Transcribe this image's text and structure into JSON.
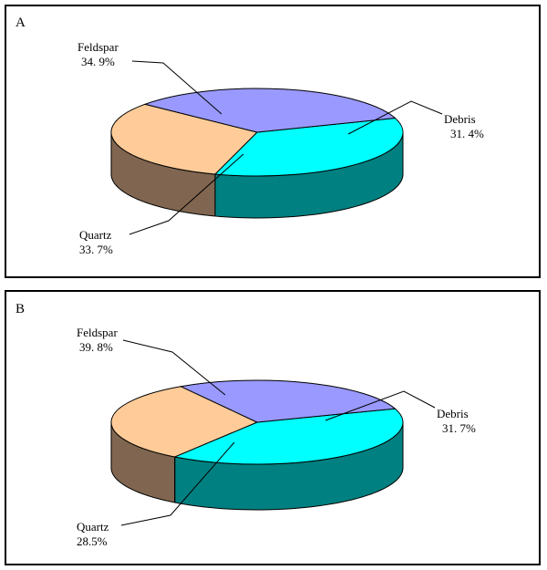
{
  "chart_data": [
    {
      "type": "pie",
      "panel_label": "A",
      "slices": [
        {
          "label": "Feldspar",
          "value": 34.9,
          "value_text": "34. 9%",
          "color": "#00ffff",
          "side_color": "#008080"
        },
        {
          "label": "Debris",
          "value": 31.4,
          "value_text": "31. 4%",
          "color": "#ffcc99",
          "side_color": "#806650"
        },
        {
          "label": "Quartz",
          "value": 33.7,
          "value_text": "33. 7%",
          "color": "#9999ff",
          "side_color": "#4b4b88"
        }
      ]
    },
    {
      "type": "pie",
      "panel_label": "B",
      "slices": [
        {
          "label": "Feldspar",
          "value": 39.8,
          "value_text": "39. 8%",
          "color": "#00ffff",
          "side_color": "#008080"
        },
        {
          "label": "Debris",
          "value": 31.7,
          "value_text": "31. 7%",
          "color": "#ffcc99",
          "side_color": "#806650"
        },
        {
          "label": "Quartz",
          "value": 28.5,
          "value_text": "28.5%",
          "color": "#9999ff",
          "side_color": "#4b4b88"
        }
      ]
    }
  ]
}
